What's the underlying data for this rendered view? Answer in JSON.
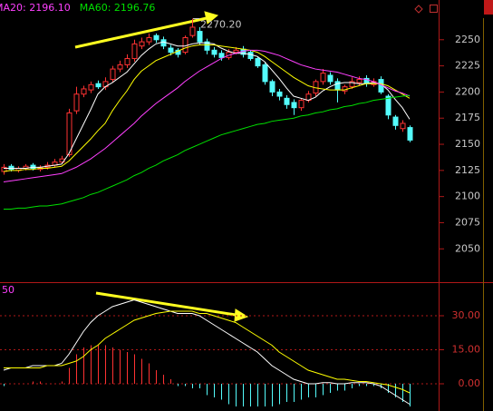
{
  "chart_data": [
    {
      "type": "candlestick",
      "legend": [
        {
          "label": "MA20: 2196.10",
          "color": "#ff40ff"
        },
        {
          "label": "MA60: 2196.76",
          "color": "#00e000"
        }
      ],
      "up_color": "#ff3232",
      "down_color": "#54fcfc",
      "open": [
        2124,
        2129,
        2125,
        2127,
        2130,
        2126,
        2128,
        2130,
        2133,
        2140,
        2182,
        2198,
        2202,
        2208,
        2205,
        2212,
        2222,
        2226,
        2232,
        2244,
        2248,
        2254,
        2250,
        2242,
        2240,
        2238,
        2254,
        2258,
        2248,
        2240,
        2237,
        2233,
        2238,
        2241,
        2238,
        2232,
        2226,
        2210,
        2200,
        2194,
        2190,
        2185,
        2192,
        2199,
        2210,
        2216,
        2210,
        2201,
        2205,
        2209,
        2213,
        2207,
        2212,
        2196,
        2176,
        2165,
        2166
      ],
      "high": [
        2131,
        2131,
        2129,
        2131,
        2132,
        2130,
        2133,
        2136,
        2139,
        2184,
        2205,
        2206,
        2210,
        2211,
        2214,
        2225,
        2230,
        2236,
        2250,
        2252,
        2256,
        2256,
        2253,
        2245,
        2242,
        2254,
        2270.2,
        2262,
        2251,
        2243,
        2240,
        2241,
        2243,
        2244,
        2240,
        2234,
        2228,
        2212,
        2203,
        2197,
        2193,
        2194,
        2201,
        2212,
        2222,
        2219,
        2213,
        2207,
        2214,
        2215,
        2216,
        2213,
        2215,
        2198,
        2178,
        2173,
        2168
      ],
      "low": [
        2121,
        2124,
        2123,
        2125,
        2125,
        2124,
        2126,
        2128,
        2131,
        2138,
        2179,
        2195,
        2199,
        2203,
        2202,
        2209,
        2219,
        2223,
        2229,
        2241,
        2245,
        2247,
        2241,
        2235,
        2233,
        2236,
        2252,
        2245,
        2236,
        2233,
        2230,
        2231,
        2236,
        2233,
        2230,
        2223,
        2207,
        2196,
        2192,
        2184,
        2178,
        2182,
        2190,
        2196,
        2207,
        2207,
        2190,
        2198,
        2203,
        2206,
        2205,
        2205,
        2198,
        2174,
        2164,
        2162,
        2152
      ],
      "close": [
        2128,
        2126,
        2127,
        2129,
        2127,
        2128,
        2130,
        2133,
        2136,
        2180,
        2198,
        2203,
        2207,
        2205,
        2210,
        2222,
        2226,
        2232,
        2246,
        2248,
        2252,
        2250,
        2244,
        2238,
        2236,
        2252,
        2262,
        2248,
        2240,
        2236,
        2233,
        2238,
        2240,
        2236,
        2232,
        2225,
        2210,
        2200,
        2196,
        2188,
        2185,
        2192,
        2198,
        2210,
        2218,
        2210,
        2202,
        2205,
        2210,
        2212,
        2208,
        2210,
        2200,
        2178,
        2168,
        2170,
        2154
      ],
      "series": [
        {
          "color": "#ffffff",
          "values": [
            2127,
            2127,
            2127,
            2127,
            2128,
            2128,
            2129,
            2130,
            2131,
            2141,
            2155,
            2169,
            2183,
            2198,
            2205,
            2209,
            2214,
            2219,
            2227,
            2235,
            2241,
            2246,
            2248,
            2246,
            2244,
            2244,
            2246,
            2247,
            2247,
            2246,
            2242,
            2239,
            2237,
            2237,
            2236,
            2234,
            2229,
            2221,
            2213,
            2204,
            2196,
            2194,
            2192,
            2195,
            2201,
            2205,
            2208,
            2209,
            2209,
            2208,
            2208,
            2209,
            2208,
            2202,
            2193,
            2185,
            2174
          ]
        },
        {
          "color": "#ffff00",
          "values": [
            2124,
            2125,
            2125,
            2126,
            2126,
            2127,
            2127,
            2128,
            2129,
            2134,
            2141,
            2148,
            2155,
            2163,
            2170,
            2182,
            2192,
            2201,
            2212,
            2220,
            2225,
            2230,
            2233,
            2236,
            2239,
            2242,
            2244,
            2245,
            2245,
            2245,
            2244,
            2243,
            2242,
            2241,
            2240,
            2238,
            2234,
            2229,
            2224,
            2219,
            2214,
            2210,
            2206,
            2204,
            2203,
            2202,
            2202,
            2202,
            2204,
            2206,
            2208,
            2208,
            2208,
            2206,
            2202,
            2198,
            2194
          ]
        },
        {
          "color": "#ff40ff",
          "values": [
            2114,
            2115,
            2116,
            2117,
            2118,
            2119,
            2120,
            2121,
            2122,
            2125,
            2128,
            2132,
            2136,
            2141,
            2146,
            2152,
            2158,
            2164,
            2170,
            2177,
            2183,
            2189,
            2194,
            2199,
            2204,
            2210,
            2215,
            2220,
            2224,
            2228,
            2232,
            2235,
            2237,
            2239,
            2240,
            2240,
            2239,
            2237,
            2235,
            2232,
            2229,
            2226,
            2224,
            2222,
            2221,
            2220,
            2219,
            2217,
            2215,
            2213,
            2212,
            2210,
            2207,
            2204,
            2201,
            2199,
            2196.1
          ]
        },
        {
          "color": "#00e000",
          "values": [
            2088,
            2088,
            2089,
            2089,
            2090,
            2091,
            2091,
            2092,
            2093,
            2095,
            2097,
            2099,
            2102,
            2104,
            2107,
            2110,
            2113,
            2116,
            2120,
            2123,
            2127,
            2130,
            2134,
            2137,
            2140,
            2144,
            2147,
            2150,
            2153,
            2156,
            2159,
            2161,
            2163,
            2165,
            2167,
            2169,
            2170,
            2172,
            2173,
            2174,
            2175,
            2177,
            2178,
            2180,
            2181,
            2183,
            2184,
            2186,
            2187,
            2189,
            2190,
            2192,
            2193,
            2194,
            2195,
            2196,
            2196.76
          ]
        }
      ],
      "annotations": [
        {
          "label": "2270.20",
          "value": 2270.2
        }
      ],
      "ylim": [
        2019,
        2288
      ],
      "yticks": [
        2050,
        2075,
        2100,
        2125,
        2150,
        2175,
        2200,
        2225,
        2250
      ]
    },
    {
      "type": "macd",
      "label": "50",
      "label_color": "#ff40ff",
      "up_color": "#ff3232",
      "down_color": "#54fcfc",
      "histogram": [
        -1,
        0,
        0,
        0,
        1,
        1,
        0,
        0,
        1,
        7,
        13,
        16,
        17,
        17,
        17,
        16,
        15,
        14,
        13,
        11,
        9,
        6,
        4,
        2,
        -1,
        -1,
        -2,
        -2,
        -5,
        -6,
        -7,
        -9,
        -10,
        -10,
        -10,
        -10,
        -10,
        -10,
        -9,
        -8,
        -8,
        -7,
        -6,
        -6,
        -5,
        -4,
        -3,
        -3,
        -2,
        -1,
        -1,
        -1,
        -2,
        -4,
        -6,
        -8,
        -10
      ],
      "series": [
        {
          "color": "#ffffff",
          "values": [
            6,
            7,
            7,
            7,
            8,
            8,
            8,
            8,
            9,
            13,
            18,
            23,
            27,
            30,
            32,
            34,
            35,
            36,
            37,
            36,
            35,
            34,
            33,
            32,
            31,
            31,
            31,
            30,
            28,
            26,
            24,
            22,
            20,
            18,
            16,
            14,
            11,
            8,
            6,
            4,
            2,
            1,
            0,
            0,
            0.5,
            0.5,
            0,
            0,
            0.5,
            0.5,
            0.5,
            0,
            -1,
            -3,
            -5,
            -7,
            -9
          ]
        },
        {
          "color": "#ffff00",
          "values": [
            7,
            7,
            7,
            7,
            7,
            7,
            8,
            8,
            8,
            9,
            10,
            12,
            15,
            17,
            20,
            22,
            24,
            26,
            28,
            29,
            30,
            31,
            31.5,
            32,
            32,
            32,
            32,
            31,
            31,
            30,
            29,
            28,
            27,
            25,
            23,
            21,
            19,
            17,
            14,
            12,
            10,
            8,
            6,
            5,
            4,
            3,
            2,
            2,
            1.5,
            1,
            1,
            0.5,
            0,
            -0.5,
            -1.5,
            -2.5,
            -4
          ]
        }
      ],
      "ylim": [
        -12,
        44
      ],
      "yticks": [
        {
          "value": 0,
          "label": "0.00"
        },
        {
          "value": 15,
          "label": "15.00"
        },
        {
          "value": 30,
          "label": "30.00"
        }
      ],
      "grid": true
    }
  ]
}
